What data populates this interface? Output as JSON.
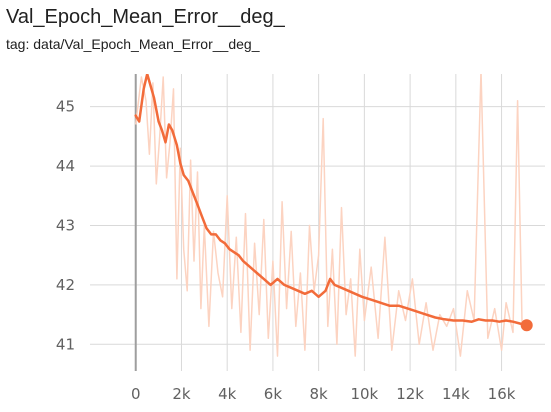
{
  "card": {
    "title": "Val_Epoch_Mean_Error__deg_",
    "tag": "tag: data/Val_Epoch_Mean_Error__deg_"
  },
  "colors": {
    "smoothed": "#f26b3a",
    "raw": "#fcd3c1",
    "grid": "#d9d9d9",
    "zero_axis": "#9e9e9e"
  },
  "chart_data": {
    "type": "line",
    "title": "Val_Epoch_Mean_Error__deg_",
    "xlabel": "",
    "ylabel": "",
    "xlim": [
      -2000,
      17900
    ],
    "ylim": [
      40.55,
      45.55
    ],
    "x_ticks": [
      0,
      2000,
      4000,
      6000,
      8000,
      10000,
      12000,
      14000,
      16000
    ],
    "x_tick_labels": [
      "0",
      "2k",
      "4k",
      "6k",
      "8k",
      "10k",
      "12k",
      "14k",
      "16k"
    ],
    "y_ticks": [
      41,
      42,
      43,
      44,
      45
    ],
    "y_tick_labels": [
      "41",
      "42",
      "43",
      "44",
      "45"
    ],
    "grid": true,
    "series": [
      {
        "role": "smoothed",
        "x": [
          0,
          150,
          350,
          500,
          650,
          800,
          1000,
          1150,
          1300,
          1450,
          1600,
          1800,
          1950,
          2100,
          2300,
          2500,
          2700,
          2900,
          3100,
          3300,
          3500,
          3700,
          3900,
          4100,
          4300,
          4500,
          4700,
          5000,
          5300,
          5600,
          5900,
          6200,
          6500,
          6800,
          7100,
          7400,
          7700,
          8000,
          8300,
          8500,
          8700,
          9000,
          9300,
          9600,
          9900,
          10300,
          10700,
          11100,
          11500,
          11900,
          12300,
          12700,
          13100,
          13500,
          13900,
          14300,
          14700,
          15000,
          15300,
          15600,
          15900,
          16200,
          16500,
          16800,
          17100
        ],
        "y": [
          44.85,
          44.75,
          45.3,
          45.55,
          45.35,
          45.15,
          44.75,
          44.6,
          44.4,
          44.7,
          44.6,
          44.35,
          44.05,
          43.85,
          43.75,
          43.55,
          43.35,
          43.15,
          42.95,
          42.85,
          42.85,
          42.75,
          42.7,
          42.6,
          42.55,
          42.5,
          42.4,
          42.3,
          42.2,
          42.1,
          42.0,
          42.1,
          42.0,
          41.95,
          41.9,
          41.85,
          41.9,
          41.8,
          41.9,
          42.1,
          42.0,
          41.95,
          41.9,
          41.85,
          41.8,
          41.75,
          41.7,
          41.65,
          41.65,
          41.6,
          41.55,
          41.5,
          41.45,
          41.42,
          41.4,
          41.4,
          41.38,
          41.42,
          41.4,
          41.4,
          41.38,
          41.4,
          41.38,
          41.35,
          41.32
        ]
      },
      {
        "role": "raw",
        "x": [
          0,
          250,
          450,
          600,
          750,
          900,
          1050,
          1200,
          1350,
          1500,
          1650,
          1800,
          1950,
          2100,
          2250,
          2400,
          2550,
          2700,
          2850,
          3000,
          3200,
          3400,
          3600,
          3800,
          4000,
          4200,
          4400,
          4600,
          4800,
          5000,
          5200,
          5400,
          5600,
          5800,
          6000,
          6200,
          6400,
          6600,
          6800,
          7000,
          7200,
          7400,
          7600,
          7800,
          8000,
          8200,
          8400,
          8600,
          8800,
          9000,
          9200,
          9400,
          9600,
          9800,
          10000,
          10300,
          10600,
          10900,
          11200,
          11500,
          11800,
          12100,
          12400,
          12700,
          13000,
          13300,
          13600,
          13900,
          14200,
          14500,
          14800,
          15100,
          15400,
          15700,
          16000,
          16200,
          16500,
          16700,
          16900,
          17100
        ],
        "y": [
          44.7,
          45.5,
          45.1,
          44.2,
          45.4,
          43.7,
          44.5,
          45.5,
          43.8,
          44.4,
          45.3,
          42.1,
          44.3,
          42.6,
          41.9,
          44.1,
          42.4,
          43.9,
          41.6,
          43.0,
          41.3,
          42.9,
          42.2,
          41.8,
          43.5,
          41.6,
          42.8,
          41.2,
          43.2,
          40.9,
          42.7,
          41.5,
          43.1,
          41.1,
          42.4,
          40.8,
          43.4,
          41.6,
          42.9,
          41.3,
          42.2,
          40.9,
          43.0,
          41.9,
          42.5,
          44.8,
          41.3,
          42.6,
          41.0,
          43.3,
          41.5,
          42.1,
          40.8,
          42.6,
          41.4,
          42.3,
          41.1,
          42.8,
          40.9,
          41.9,
          41.4,
          42.1,
          41.0,
          41.7,
          40.9,
          41.5,
          41.3,
          41.6,
          40.8,
          41.9,
          41.4,
          45.6,
          41.1,
          41.6,
          40.9,
          41.7,
          41.2,
          45.1,
          41.3,
          41.3
        ]
      }
    ]
  }
}
